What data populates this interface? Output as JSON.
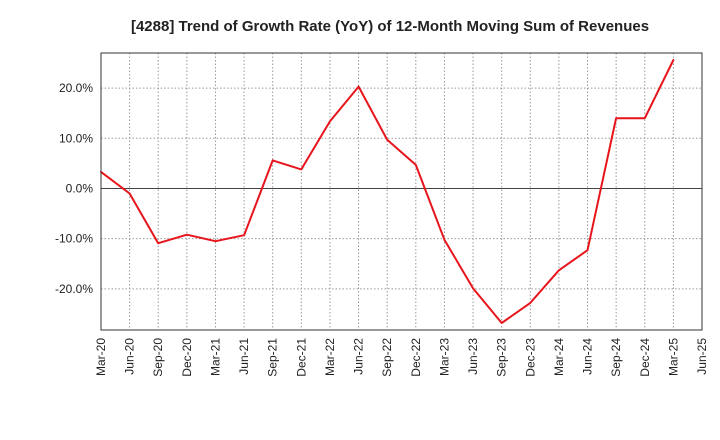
{
  "chart_data": {
    "type": "line",
    "title": "[4288]  Trend of Growth Rate (YoY) of 12-Month Moving Sum of Revenues",
    "xlabel": "",
    "ylabel": "",
    "categories": [
      "Mar-20",
      "Jun-20",
      "Sep-20",
      "Dec-20",
      "Mar-21",
      "Jun-21",
      "Sep-21",
      "Dec-21",
      "Mar-22",
      "Jun-22",
      "Sep-22",
      "Dec-22",
      "Mar-23",
      "Jun-23",
      "Sep-23",
      "Dec-23",
      "Mar-24",
      "Jun-24",
      "Sep-24",
      "Dec-24",
      "Mar-25",
      "Jun-25"
    ],
    "series": [
      {
        "color": "#e8141c",
        "values": [
          3.3,
          -1.0,
          -10.9,
          -9.2,
          -10.5,
          -9.3,
          5.6,
          3.8,
          13.4,
          20.3,
          9.7,
          4.7,
          -10.2,
          -19.9,
          -26.8,
          -22.8,
          -16.3,
          -12.3,
          14.0,
          14.0,
          25.6,
          null
        ]
      }
    ],
    "ylim": [
      -28.2,
      27.0
    ],
    "yticks": [
      20,
      10,
      0,
      -10,
      -20
    ],
    "ytick_labels": [
      "20.0%",
      "10.0%",
      "0.0%",
      "-10.0%",
      "-20.0%"
    ],
    "grid": true,
    "grid_style": "dotted",
    "zero_line": true,
    "legend": "none"
  }
}
